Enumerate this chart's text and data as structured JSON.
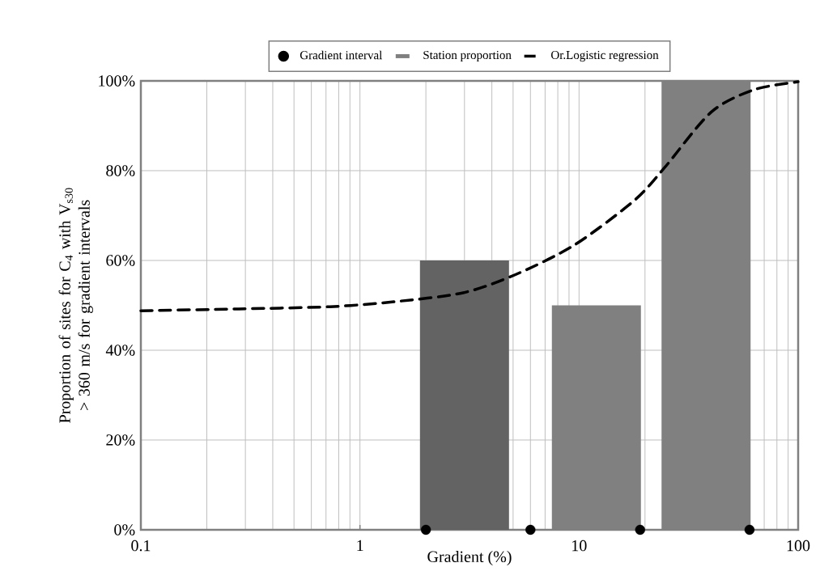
{
  "chart_data": {
    "type": "bar",
    "xlabel": "Gradient (%)",
    "ylabel": "Proportion of sites for C$_{4}$ with V$_{s30}$ > 360 m/s for gradient intervals",
    "log": "x",
    "xlim": [
      0.1,
      100
    ],
    "xticks": [
      0.1,
      1,
      10,
      100
    ],
    "ylim": [
      0,
      100
    ],
    "yticks": [
      {
        "value": 0,
        "label": "0%"
      },
      {
        "value": 20,
        "label": "20%"
      },
      {
        "value": 40,
        "label": "40%"
      },
      {
        "value": 60,
        "label": "60%"
      },
      {
        "value": 80,
        "label": "80%"
      },
      {
        "value": 100,
        "label": "100%"
      }
    ],
    "grid": true,
    "legend": "top",
    "series": [
      {
        "name": "Gradient interval",
        "type": "scatter",
        "marker": "circle",
        "color": "#000000",
        "x": [
          2,
          6,
          19,
          60
        ],
        "values": [
          0,
          0,
          0,
          0
        ]
      },
      {
        "name": "Station proportion",
        "color": "#808080",
        "colors": [
          "#636363",
          "#808080",
          "#808080"
        ],
        "x": [
          3,
          12,
          38
        ],
        "values": [
          60,
          50,
          100
        ]
      },
      {
        "name": "Or.Logistic regression",
        "type": "line",
        "line_style": "dashed",
        "marker": "none",
        "color": "#000000",
        "x": [
          0.1,
          0.28,
          0.73,
          1.43,
          2.96,
          5.1,
          9.5,
          17.8,
          24.4,
          40,
          62.6,
          100
        ],
        "values": [
          48.8,
          49.2,
          49.7,
          50.8,
          52.8,
          56.8,
          63.4,
          73.3,
          80.5,
          93,
          98,
          99.8
        ]
      }
    ]
  }
}
